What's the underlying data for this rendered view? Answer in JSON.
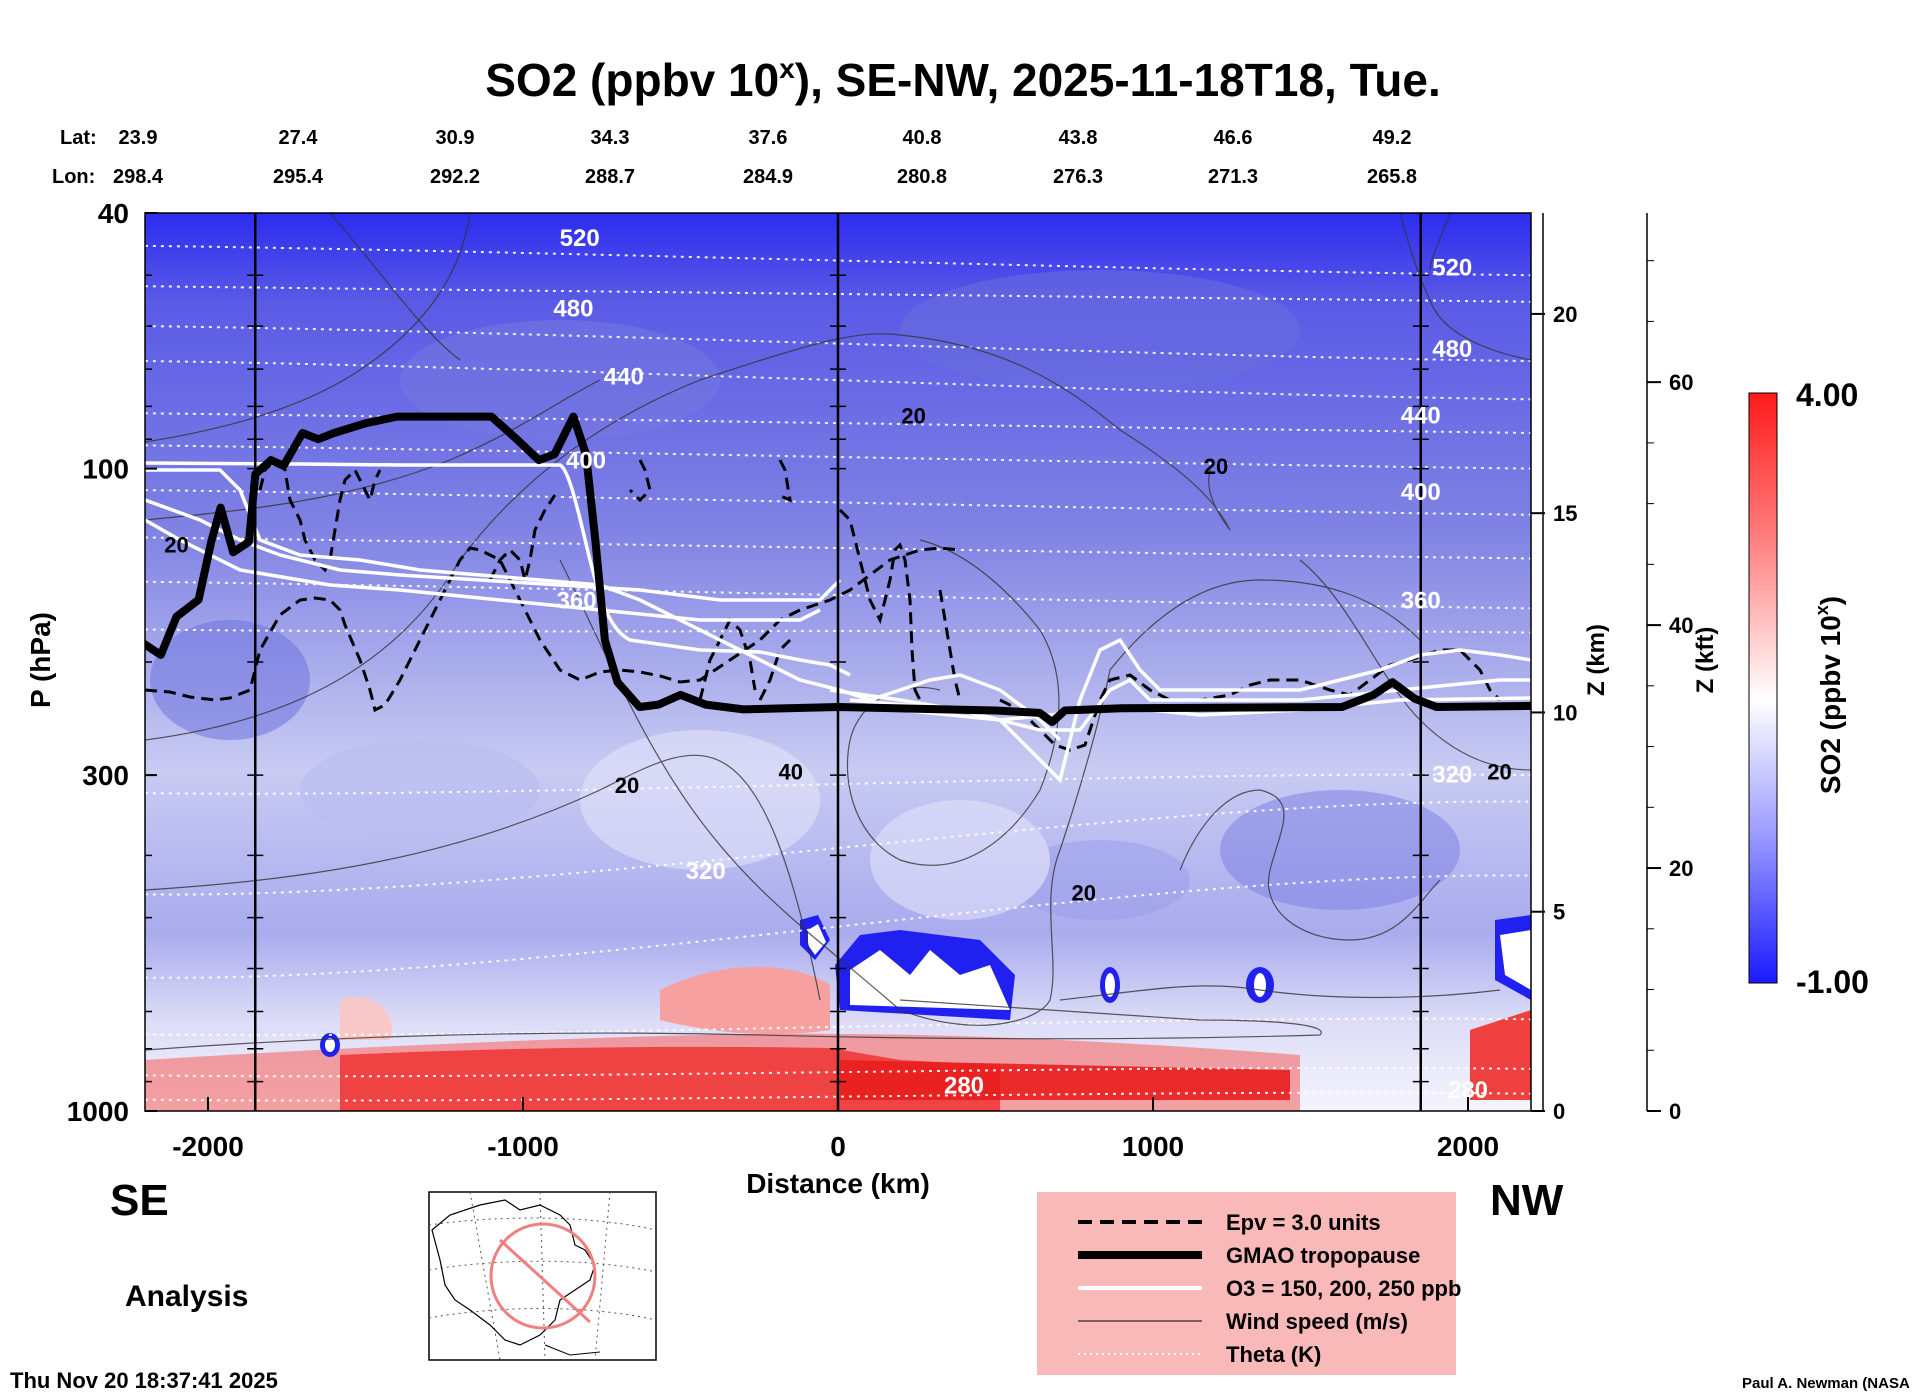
{
  "title": "SO2 (ppbv 10ˣ), SE-NW, 2025-11-18T18, Tue.",
  "title_parts": {
    "main": "SO2 (ppbv 10",
    "sup": "x",
    "rest": "), SE-NW, 2025-11-18T18, Tue."
  },
  "lat_label": "Lat:",
  "lon_label": "Lon:",
  "lat_values": [
    "23.9",
    "27.4",
    "30.9",
    "34.3",
    "37.6",
    "40.8",
    "43.8",
    "46.6",
    "49.2"
  ],
  "lon_values": [
    "298.4",
    "295.4",
    "292.2",
    "288.7",
    "284.9",
    "280.8",
    "276.3",
    "271.3",
    "265.8"
  ],
  "direction_left": "SE",
  "direction_right": "NW",
  "analysis_label": "Analysis",
  "timestamp": "Thu Nov 20 18:37:41 2025",
  "credit": "Paul A. Newman (NASA",
  "colorbar": {
    "max_label": "4.00",
    "min_label": "-1.00",
    "title_main": "SO2 (ppbv 10",
    "title_sup": "x",
    "title_rest": ")",
    "colors": {
      "high": "#ff1a1a",
      "mid": "#ffffff",
      "low": "#1a1aff"
    }
  },
  "legend": {
    "items": [
      {
        "style": "dashed",
        "label": "Epv = 3.0 units"
      },
      {
        "style": "thick",
        "label": "GMAO tropopause"
      },
      {
        "style": "white",
        "label": "O3 = 150, 200, 250 ppb"
      },
      {
        "style": "thin",
        "label": "Wind speed (m/s)"
      },
      {
        "style": "dotted",
        "label": "Theta (K)"
      }
    ],
    "background": "#f9b9b9"
  },
  "chart_data": {
    "type": "heatmap",
    "title": "SO2 (ppbv 10ˣ), SE-NW, 2025-11-18T18, Tue.",
    "xlabel": "Distance (km)",
    "ylabel": "P (hPa)",
    "y2label": "Z (km)",
    "y3label": "Z (kft)",
    "xlim": [
      -2200,
      2200
    ],
    "ylim": [
      1000,
      40
    ],
    "yscale": "log",
    "x_ticks": [
      -2000,
      -1000,
      0,
      1000,
      2000
    ],
    "x_tick_labels": [
      "-2000",
      "-1000",
      "0",
      "1000",
      "2000"
    ],
    "y_ticks": [
      1000,
      300,
      100,
      40
    ],
    "y_tick_labels": [
      "1000",
      "300",
      "100",
      "40"
    ],
    "z_km_ticks": [
      0,
      5,
      10,
      15,
      20
    ],
    "z_kft_ticks": [
      0,
      20,
      40,
      60
    ],
    "colorbar_range": [
      -1.0,
      4.0
    ],
    "vertical_marker_lines_km": [
      -1850,
      0,
      1850
    ],
    "theta_labels": [
      {
        "x": -820,
        "p": 45,
        "label": "520"
      },
      {
        "x": 1950,
        "p": 50,
        "label": "520"
      },
      {
        "x": -840,
        "p": 58,
        "label": "480"
      },
      {
        "x": 1950,
        "p": 67,
        "label": "480"
      },
      {
        "x": -680,
        "p": 74,
        "label": "440"
      },
      {
        "x": 1850,
        "p": 85,
        "label": "440"
      },
      {
        "x": -800,
        "p": 100,
        "label": "400"
      },
      {
        "x": 1850,
        "p": 112,
        "label": "400"
      },
      {
        "x": -830,
        "p": 165,
        "label": "360"
      },
      {
        "x": 1850,
        "p": 165,
        "label": "360"
      },
      {
        "x": -420,
        "p": 435,
        "label": "320"
      },
      {
        "x": 1950,
        "p": 308,
        "label": "320"
      },
      {
        "x": 400,
        "p": 940,
        "label": "280"
      },
      {
        "x": 2000,
        "p": 955,
        "label": "280"
      }
    ],
    "wind_labels": [
      {
        "x": -2100,
        "p": 135,
        "label": "20"
      },
      {
        "x": 240,
        "p": 85,
        "label": "20"
      },
      {
        "x": 1200,
        "p": 102,
        "label": "20"
      },
      {
        "x": -670,
        "p": 320,
        "label": "20"
      },
      {
        "x": -150,
        "p": 305,
        "label": "40"
      },
      {
        "x": 780,
        "p": 470,
        "label": "20"
      },
      {
        "x": 2100,
        "p": 305,
        "label": "20"
      }
    ],
    "tropopause_hpa": [
      {
        "x": -2220,
        "p": 185
      },
      {
        "x": -2150,
        "p": 195
      },
      {
        "x": -2100,
        "p": 170
      },
      {
        "x": -2030,
        "p": 160
      },
      {
        "x": -1990,
        "p": 130
      },
      {
        "x": -1960,
        "p": 115
      },
      {
        "x": -1920,
        "p": 135
      },
      {
        "x": -1870,
        "p": 130
      },
      {
        "x": -1850,
        "p": 102
      },
      {
        "x": -1800,
        "p": 97
      },
      {
        "x": -1760,
        "p": 99
      },
      {
        "x": -1700,
        "p": 88
      },
      {
        "x": -1650,
        "p": 90
      },
      {
        "x": -1600,
        "p": 88
      },
      {
        "x": -1500,
        "p": 85
      },
      {
        "x": -1400,
        "p": 83
      },
      {
        "x": -1100,
        "p": 83
      },
      {
        "x": -1020,
        "p": 90
      },
      {
        "x": -950,
        "p": 97
      },
      {
        "x": -900,
        "p": 95
      },
      {
        "x": -840,
        "p": 83
      },
      {
        "x": -800,
        "p": 95
      },
      {
        "x": -770,
        "p": 130
      },
      {
        "x": -740,
        "p": 185
      },
      {
        "x": -700,
        "p": 215
      },
      {
        "x": -630,
        "p": 235
      },
      {
        "x": -570,
        "p": 233
      },
      {
        "x": -500,
        "p": 225
      },
      {
        "x": -420,
        "p": 233
      },
      {
        "x": -300,
        "p": 237
      },
      {
        "x": 0,
        "p": 235
      },
      {
        "x": 500,
        "p": 238
      },
      {
        "x": 640,
        "p": 240
      },
      {
        "x": 680,
        "p": 248
      },
      {
        "x": 720,
        "p": 238
      },
      {
        "x": 900,
        "p": 236
      },
      {
        "x": 1600,
        "p": 235
      },
      {
        "x": 1700,
        "p": 225
      },
      {
        "x": 1760,
        "p": 215
      },
      {
        "x": 1830,
        "p": 228
      },
      {
        "x": 1900,
        "p": 235
      },
      {
        "x": 2220,
        "p": 234
      }
    ]
  }
}
